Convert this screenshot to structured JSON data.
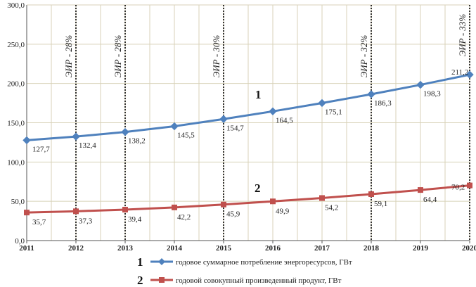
{
  "colors": {
    "series1": "#4f81bd",
    "series2": "#c0504d",
    "grid": "#d8d2b8",
    "axis": "#555555"
  },
  "chart_data": {
    "type": "line",
    "x": [
      "2011",
      "2012",
      "2013",
      "2014",
      "2015",
      "2016",
      "2017",
      "2018",
      "2019",
      "2020"
    ],
    "ylim": [
      0,
      300
    ],
    "yticks": [
      "0,0",
      "50,0",
      "100,0",
      "150,0",
      "200,0",
      "250,0",
      "300,0"
    ],
    "grid": true,
    "series": [
      {
        "name": "годовое суммарное потребление энергоресурсов, ГВт",
        "number_label": "1",
        "color": "#4f81bd",
        "marker": "diamond",
        "values": [
          127.7,
          132.4,
          138.2,
          145.5,
          154.7,
          164.5,
          175.1,
          186.3,
          198.3,
          211.2
        ],
        "labels": [
          "127,7",
          "132,4",
          "138,2",
          "145,5",
          "154,7",
          "164,5",
          "175,1",
          "186,3",
          "198,3",
          "211,2"
        ]
      },
      {
        "name": "годовой совокупный произведенный продукт, ГВт",
        "number_label": "2",
        "color": "#c0504d",
        "marker": "square",
        "values": [
          35.7,
          37.3,
          39.4,
          42.2,
          45.9,
          49.9,
          54.2,
          59.1,
          64.4,
          70.2
        ],
        "labels": [
          "35,7",
          "37,3",
          "39,4",
          "42,2",
          "45,9",
          "49,9",
          "54,2",
          "59,1",
          "64,4",
          "70,2"
        ]
      }
    ],
    "vertical_markers": [
      {
        "x": "2012",
        "label": "ЭИР - 28%"
      },
      {
        "x": "2013",
        "label": "ЭИР - 28%"
      },
      {
        "x": "2015",
        "label": "ЭИР - 30%"
      },
      {
        "x": "2018",
        "label": "ЭИР - 32%"
      },
      {
        "x": "2020",
        "label": "ЭИР - 33%"
      }
    ]
  }
}
